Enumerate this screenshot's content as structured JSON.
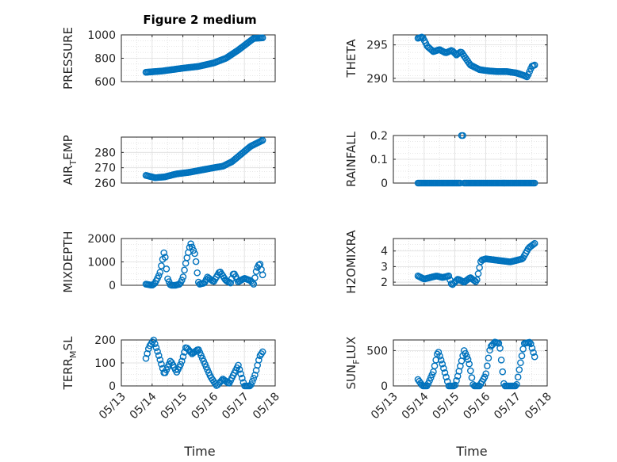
{
  "figure": {
    "title": "Figure 2 medium"
  },
  "chart_data": [
    {
      "type": "scatter",
      "ylabel": "PRESSURE",
      "title": "Figure 2 medium",
      "ylim": [
        600,
        1000
      ],
      "yticks": [
        600,
        800,
        1000
      ],
      "ytick_labels": [
        "600",
        "800",
        "1000"
      ],
      "xlim": [
        0,
        5
      ],
      "x_knots": [
        0.8,
        1.3,
        2.0,
        2.5,
        3.0,
        3.4,
        3.8,
        4.1,
        4.3,
        4.6
      ],
      "y_knots": [
        680,
        690,
        715,
        730,
        760,
        800,
        870,
        930,
        970,
        975
      ],
      "series": [
        {
          "color": "#0072BD",
          "marker": "circle"
        }
      ]
    },
    {
      "type": "scatter",
      "ylabel": "THETA",
      "ylim": [
        289.5,
        296.5
      ],
      "yticks": [
        290,
        295
      ],
      "ytick_labels": [
        "290",
        "295"
      ],
      "xlim": [
        0,
        5
      ],
      "x_knots": [
        0.8,
        0.95,
        1.1,
        1.3,
        1.5,
        1.7,
        1.9,
        2.05,
        2.2,
        2.35,
        2.5,
        2.8,
        3.1,
        3.4,
        3.7,
        4.0,
        4.2,
        4.35,
        4.5,
        4.6
      ],
      "y_knots": [
        296,
        296.2,
        294.8,
        294,
        294.3,
        293.8,
        294.2,
        293.5,
        294,
        293,
        292,
        291.3,
        291.1,
        291,
        291,
        290.8,
        290.5,
        290.2,
        291.8,
        292
      ],
      "series": [
        {
          "color": "#0072BD",
          "marker": "circle"
        }
      ]
    },
    {
      "type": "scatter",
      "ylabel": "AIR_TEMP",
      "ylim": [
        260,
        290
      ],
      "yticks": [
        260,
        270,
        280
      ],
      "ytick_labels": [
        "260",
        "270",
        "280"
      ],
      "xlim": [
        0,
        5
      ],
      "x_knots": [
        0.8,
        1.1,
        1.4,
        1.8,
        2.2,
        2.6,
        3.0,
        3.3,
        3.6,
        3.9,
        4.2,
        4.4,
        4.6
      ],
      "y_knots": [
        265,
        263.5,
        264,
        266,
        267,
        268.5,
        270,
        271,
        274,
        279,
        284,
        286,
        288
      ],
      "series": [
        {
          "color": "#0072BD",
          "marker": "circle"
        }
      ]
    },
    {
      "type": "scatter",
      "ylabel": "RAINFALL",
      "ylim": [
        0,
        0.2
      ],
      "yticks": [
        0,
        0.1,
        0.2
      ],
      "ytick_labels": [
        "0",
        "0.1",
        "0.2"
      ],
      "xlim": [
        0,
        5
      ],
      "x_knots": [
        0.8,
        4.6
      ],
      "y_knots": [
        0,
        0
      ],
      "spike_x": [
        2.18,
        2.26
      ],
      "spike_y": 0.2,
      "series": [
        {
          "color": "#0072BD",
          "marker": "circle"
        }
      ]
    },
    {
      "type": "scatter",
      "ylabel": "MIXDEPTH",
      "ylim": [
        0,
        2000
      ],
      "yticks": [
        0,
        1000,
        2000
      ],
      "ytick_labels": [
        "0",
        "1000",
        "2000"
      ],
      "xlim": [
        0,
        5
      ],
      "x_knots": [
        0.8,
        1.0,
        1.1,
        1.25,
        1.4,
        1.5,
        1.6,
        1.75,
        1.9,
        2.0,
        2.1,
        2.25,
        2.4,
        2.5,
        2.55,
        2.7,
        2.8,
        3.0,
        3.2,
        3.4,
        3.55,
        3.65,
        3.8,
        4.0,
        4.2,
        4.3,
        4.4,
        4.5,
        4.6
      ],
      "y_knots": [
        50,
        0,
        100,
        500,
        1500,
        300,
        0,
        0,
        50,
        300,
        1000,
        1800,
        1300,
        150,
        50,
        100,
        350,
        150,
        600,
        200,
        100,
        550,
        150,
        300,
        200,
        50,
        700,
        950,
        400
      ],
      "series": [
        {
          "color": "#0072BD",
          "marker": "circle"
        }
      ]
    },
    {
      "type": "scatter",
      "ylabel": "H2OMIXRA",
      "ylim": [
        1.8,
        4.8
      ],
      "yticks": [
        2,
        3,
        4
      ],
      "ytick_labels": [
        "2",
        "3",
        "4"
      ],
      "xlim": [
        0,
        5
      ],
      "x_knots": [
        0.8,
        1.0,
        1.2,
        1.4,
        1.6,
        1.8,
        1.9,
        2.1,
        2.3,
        2.5,
        2.7,
        2.85,
        3.0,
        3.4,
        3.8,
        4.2,
        4.4,
        4.6
      ],
      "y_knots": [
        2.4,
        2.2,
        2.3,
        2.4,
        2.3,
        2.4,
        1.8,
        2.2,
        2.0,
        2.3,
        2.0,
        3.4,
        3.5,
        3.4,
        3.3,
        3.5,
        4.2,
        4.5
      ],
      "series": [
        {
          "color": "#0072BD",
          "marker": "circle"
        }
      ]
    },
    {
      "type": "scatter",
      "ylabel": "TERR_MSL",
      "ylim": [
        0,
        200
      ],
      "yticks": [
        0,
        100,
        200
      ],
      "ytick_labels": [
        "0",
        "100",
        "200"
      ],
      "xlim": [
        0,
        5
      ],
      "x_knots": [
        0.8,
        0.9,
        1.05,
        1.2,
        1.4,
        1.6,
        1.8,
        1.95,
        2.1,
        2.3,
        2.5,
        2.7,
        2.9,
        3.1,
        3.3,
        3.5,
        3.65,
        3.8,
        4.0,
        4.2,
        4.35,
        4.5,
        4.6
      ],
      "y_knots": [
        120,
        170,
        200,
        140,
        50,
        110,
        60,
        100,
        170,
        140,
        160,
        100,
        40,
        0,
        30,
        10,
        50,
        90,
        0,
        0,
        50,
        130,
        150
      ],
      "series": [
        {
          "color": "#0072BD",
          "marker": "circle"
        }
      ]
    },
    {
      "type": "scatter",
      "ylabel": "SUN_FLUX",
      "ylim": [
        0,
        650
      ],
      "yticks": [
        0,
        500
      ],
      "ytick_labels": [
        "0",
        "500"
      ],
      "xlim": [
        0,
        5
      ],
      "x_knots": [
        0.8,
        0.95,
        1.1,
        1.3,
        1.45,
        1.6,
        1.8,
        2.0,
        2.1,
        2.3,
        2.45,
        2.6,
        2.8,
        3.0,
        3.15,
        3.3,
        3.45,
        3.6,
        3.8,
        4.0,
        4.1,
        4.25,
        4.45,
        4.6
      ],
      "y_knots": [
        90,
        0,
        0,
        200,
        500,
        300,
        0,
        0,
        150,
        500,
        350,
        0,
        0,
        150,
        550,
        620,
        600,
        0,
        0,
        0,
        250,
        600,
        620,
        400
      ],
      "series": [
        {
          "color": "#0072BD",
          "marker": "circle"
        }
      ]
    }
  ],
  "axes": {
    "xtick_labels": [
      "05/13",
      "05/14",
      "05/15",
      "05/16",
      "05/17",
      "05/18"
    ],
    "xlabel_left": "Time",
    "xlabel_right": "Time"
  },
  "ylabels": [
    {
      "main": "PRESSURE",
      "sub": ""
    },
    {
      "main": "THETA",
      "sub": ""
    },
    {
      "main": "AIR",
      "sub": "T",
      "rest": "EMP"
    },
    {
      "main": "RAINFALL",
      "sub": ""
    },
    {
      "main": "MIXDEPTH",
      "sub": ""
    },
    {
      "main": "H2OMIXRA",
      "sub": ""
    },
    {
      "main": "TERR",
      "sub": "M",
      "rest": "SL"
    },
    {
      "main": "SUN",
      "sub": "F",
      "rest": "LUX"
    }
  ]
}
